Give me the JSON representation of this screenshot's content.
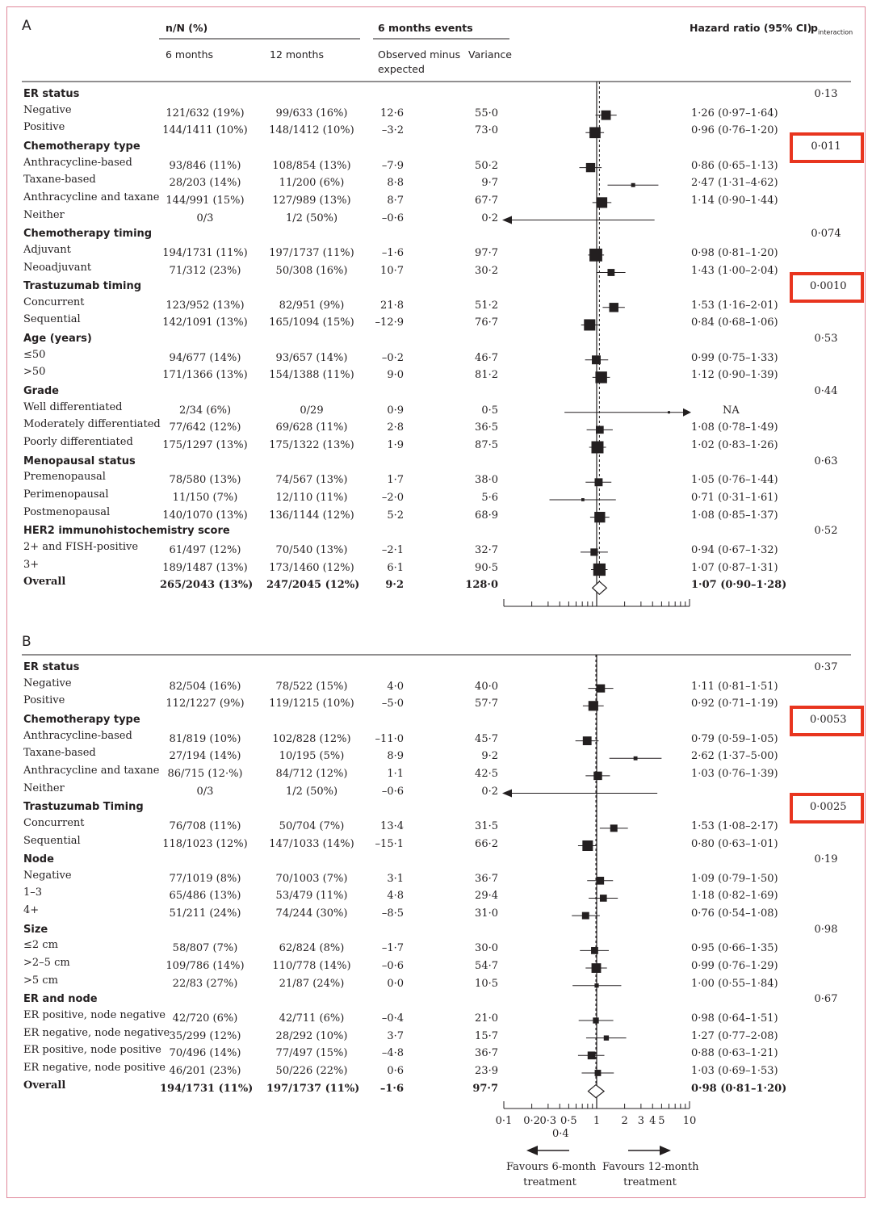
{
  "colors": {
    "highlight": "#e8351f",
    "frame": "#e0879a",
    "ink": "#231f20"
  },
  "headers": {
    "nN": "n/N (%)",
    "m6": "6 months",
    "m12": "12 months",
    "events": "6 months events",
    "ome": "Observed minus",
    "ome2": "expected",
    "variance": "Variance",
    "hr": "Hazard ratio (95% CI)",
    "p_main": "p",
    "p_sub": "interaction"
  },
  "axis": {
    "ticks": [
      "0·1",
      "0·2",
      "0·3",
      "0·5",
      "1",
      "2",
      "3",
      "4",
      "5",
      "10"
    ],
    "tick_04": "0·4",
    "favours_left": [
      "Favours 6-month",
      "treatment"
    ],
    "favours_right": [
      "Favours 12-month",
      "treatment"
    ]
  },
  "chart_data": [
    {
      "type": "forest",
      "panel": "A",
      "rows": [
        {
          "section": "ER status",
          "p": "0·13"
        },
        {
          "label": "Negative",
          "n6": "121/632 (19%)",
          "n12": "99/633 (16%)",
          "ome": "12·6",
          "var": "55·0",
          "hr_text": "1·26 (0·97–1·64)",
          "hr": 1.26,
          "lo": 0.97,
          "hi": 1.64
        },
        {
          "label": "Positive",
          "n6": "144/1411 (10%)",
          "n12": "148/1412 (10%)",
          "ome": "–3·2",
          "var": "73·0",
          "hr_text": "0·96 (0·76–1·20)",
          "hr": 0.96,
          "lo": 0.76,
          "hi": 1.2
        },
        {
          "section": "Chemotherapy type",
          "p": "0·011",
          "highlight": true
        },
        {
          "label": "Anthracycline-based",
          "n6": "93/846 (11%)",
          "n12": "108/854 (13%)",
          "ome": "–7·9",
          "var": "50·2",
          "hr_text": "0·86 (0·65–1·13)",
          "hr": 0.86,
          "lo": 0.65,
          "hi": 1.13
        },
        {
          "label": "Taxane-based",
          "n6": "28/203 (14%)",
          "n12": "11/200 (6%)",
          "ome": "8·8",
          "var": "9·7",
          "hr_text": "2·47 (1·31–4·62)",
          "hr": 2.47,
          "lo": 1.31,
          "hi": 4.62
        },
        {
          "label": "Anthracycline and taxane",
          "n6": "144/991 (15%)",
          "n12": "127/989 (13%)",
          "ome": "8·7",
          "var": "67·7",
          "hr_text": "1·14 (0·90–1·44)",
          "hr": 1.14,
          "lo": 0.9,
          "hi": 1.44
        },
        {
          "label": "Neither",
          "n6": "0/3",
          "n12": "1/2 (50%)",
          "ome": "–0·6",
          "var": "0·2",
          "hr_text": "",
          "hr": null,
          "lo": 0.1,
          "hi": 4.2,
          "arrow_left": true
        },
        {
          "section": "Chemotherapy timing",
          "p": "0·074"
        },
        {
          "label": "Adjuvant",
          "n6": "194/1731 (11%)",
          "n12": "197/1737 (11%)",
          "ome": "–1·6",
          "var": "97·7",
          "hr_text": "0·98 (0·81–1·20)",
          "hr": 0.98,
          "lo": 0.81,
          "hi": 1.2
        },
        {
          "label": "Neoadjuvant",
          "n6": "71/312 (23%)",
          "n12": "50/308 (16%)",
          "ome": "10·7",
          "var": "30·2",
          "hr_text": "1·43 (1·00–2·04)",
          "hr": 1.43,
          "lo": 1.0,
          "hi": 2.04
        },
        {
          "section": "Trastuzumab timing",
          "p": "0·0010",
          "highlight": true
        },
        {
          "label": "Concurrent",
          "n6": "123/952 (13%)",
          "n12": "82/951 (9%)",
          "ome": "21·8",
          "var": "51·2",
          "hr_text": "1·53 (1·16–2·01)",
          "hr": 1.53,
          "lo": 1.16,
          "hi": 2.01
        },
        {
          "label": "Sequential",
          "n6": "142/1091 (13%)",
          "n12": "165/1094 (15%)",
          "ome": "–12·9",
          "var": "76·7",
          "hr_text": "0·84 (0·68–1·06)",
          "hr": 0.84,
          "lo": 0.68,
          "hi": 1.06
        },
        {
          "section": "Age (years)",
          "p": "0·53"
        },
        {
          "label": "≤50",
          "n6": "94/677 (14%)",
          "n12": "93/657 (14%)",
          "ome": "–0·2",
          "var": "46·7",
          "hr_text": "0·99 (0·75–1·33)",
          "hr": 0.99,
          "lo": 0.75,
          "hi": 1.33
        },
        {
          "label": ">50",
          "n6": "171/1366 (13%)",
          "n12": "154/1388 (11%)",
          "ome": "9·0",
          "var": "81·2",
          "hr_text": "1·12 (0·90–1·39)",
          "hr": 1.12,
          "lo": 0.9,
          "hi": 1.39
        },
        {
          "section": "Grade",
          "p": "0·44"
        },
        {
          "label": "Well differentiated",
          "n6": "2/34 (6%)",
          "n12": "0/29",
          "ome": "0·9",
          "var": "0·5",
          "hr_text": "NA",
          "hr": 6.0,
          "lo": 0.45,
          "hi": 10,
          "arrow_right": true
        },
        {
          "label": "Moderately differentiated",
          "n6": "77/642 (12%)",
          "n12": "69/628 (11%)",
          "ome": "2·8",
          "var": "36·5",
          "hr_text": "1·08 (0·78–1·49)",
          "hr": 1.08,
          "lo": 0.78,
          "hi": 1.49
        },
        {
          "label": "Poorly differentiated",
          "n6": "175/1297 (13%)",
          "n12": "175/1322 (13%)",
          "ome": "1·9",
          "var": "87·5",
          "hr_text": "1·02 (0·83–1·26)",
          "hr": 1.02,
          "lo": 0.83,
          "hi": 1.26
        },
        {
          "section": "Menopausal status",
          "p": "0·63"
        },
        {
          "label": "Premenopausal",
          "n6": "78/580 (13%)",
          "n12": "74/567 (13%)",
          "ome": "1·7",
          "var": "38·0",
          "hr_text": "1·05 (0·76–1·44)",
          "hr": 1.05,
          "lo": 0.76,
          "hi": 1.44
        },
        {
          "label": "Perimenopausal",
          "n6": "11/150 (7%)",
          "n12": "12/110 (11%)",
          "ome": "–2·0",
          "var": "5·6",
          "hr_text": "0·71 (0·31–1·61)",
          "hr": 0.71,
          "lo": 0.31,
          "hi": 1.61
        },
        {
          "label": "Postmenopausal",
          "n6": "140/1070 (13%)",
          "n12": "136/1144 (12%)",
          "ome": "5·2",
          "var": "68·9",
          "hr_text": "1·08 (0·85–1·37)",
          "hr": 1.08,
          "lo": 0.85,
          "hi": 1.37
        },
        {
          "section": "HER2 immunohistochemistry score",
          "p": "0·52"
        },
        {
          "label": "2+ and FISH-positive",
          "n6": "61/497 (12%)",
          "n12": "70/540 (13%)",
          "ome": "–2·1",
          "var": "32·7",
          "hr_text": "0·94 (0·67–1·32)",
          "hr": 0.94,
          "lo": 0.67,
          "hi": 1.32
        },
        {
          "label": "3+",
          "n6": "189/1487 (13%)",
          "n12": "173/1460 (12%)",
          "ome": "6·1",
          "var": "90·5",
          "hr_text": "1·07 (0·87–1·31)",
          "hr": 1.07,
          "lo": 0.87,
          "hi": 1.31
        },
        {
          "label": "Overall",
          "overall": true,
          "n6": "265/2043 (13%)",
          "n12": "247/2045 (12%)",
          "ome": "9·2",
          "var": "128·0",
          "hr_text": "1·07 (0·90–1·28)",
          "hr": 1.07,
          "lo": 0.9,
          "hi": 1.28
        }
      ]
    },
    {
      "type": "forest",
      "panel": "B",
      "rows": [
        {
          "section": "ER status",
          "p": "0·37"
        },
        {
          "label": "Negative",
          "n6": "82/504 (16%)",
          "n12": "78/522 (15%)",
          "ome": "4·0",
          "var": "40·0",
          "hr_text": "1·11 (0·81–1·51)",
          "hr": 1.11,
          "lo": 0.81,
          "hi": 1.51
        },
        {
          "label": "Positive",
          "n6": "112/1227 (9%)",
          "n12": "119/1215 (10%)",
          "ome": "–5·0",
          "var": "57·7",
          "hr_text": "0·92 (0·71–1·19)",
          "hr": 0.92,
          "lo": 0.71,
          "hi": 1.19
        },
        {
          "section": "Chemotherapy type",
          "p": "0·0053",
          "highlight": true
        },
        {
          "label": "Anthracycline-based",
          "n6": "81/819 (10%)",
          "n12": "102/828 (12%)",
          "ome": "–11·0",
          "var": "45·7",
          "hr_text": "0·79 (0·59–1·05)",
          "hr": 0.79,
          "lo": 0.59,
          "hi": 1.05
        },
        {
          "label": "Taxane-based",
          "n6": "27/194 (14%)",
          "n12": "10/195 (5%)",
          "ome": "8·9",
          "var": "9·2",
          "hr_text": "2·62 (1·37–5·00)",
          "hr": 2.62,
          "lo": 1.37,
          "hi": 5.0
        },
        {
          "label": "Anthracycline and taxane",
          "n6": "86/715 (12·%)",
          "n12": "84/712 (12%)",
          "ome": "1·1",
          "var": "42·5",
          "hr_text": "1·03 (0·76–1·39)",
          "hr": 1.03,
          "lo": 0.76,
          "hi": 1.39
        },
        {
          "label": "Neither",
          "n6": "0/3",
          "n12": "1/2 (50%)",
          "ome": "–0·6",
          "var": "0·2",
          "hr_text": "",
          "hr": null,
          "lo": 0.1,
          "hi": 4.5,
          "arrow_left": true
        },
        {
          "section": "Trastuzumab Timing",
          "p": "0·0025",
          "highlight": true
        },
        {
          "label": "Concurrent",
          "n6": "76/708 (11%)",
          "n12": "50/704 (7%)",
          "ome": "13·4",
          "var": "31·5",
          "hr_text": "1·53 (1·08–2·17)",
          "hr": 1.53,
          "lo": 1.08,
          "hi": 2.17
        },
        {
          "label": "Sequential",
          "n6": "118/1023 (12%)",
          "n12": "147/1033 (14%)",
          "ome": "–15·1",
          "var": "66·2",
          "hr_text": "0·80 (0·63–1·01)",
          "hr": 0.8,
          "lo": 0.63,
          "hi": 1.01
        },
        {
          "section": "Node",
          "p": "0·19"
        },
        {
          "label": "Negative",
          "n6": "77/1019 (8%)",
          "n12": "70/1003 (7%)",
          "ome": "3·1",
          "var": "36·7",
          "hr_text": "1·09 (0·79–1·50)",
          "hr": 1.09,
          "lo": 0.79,
          "hi": 1.5
        },
        {
          "label": "1–3",
          "n6": "65/486 (13%)",
          "n12": "53/479 (11%)",
          "ome": "4·8",
          "var": "29·4",
          "hr_text": "1·18 (0·82–1·69)",
          "hr": 1.18,
          "lo": 0.82,
          "hi": 1.69
        },
        {
          "label": "4+",
          "n6": "51/211 (24%)",
          "n12": "74/244 (30%)",
          "ome": "–8·5",
          "var": "31·0",
          "hr_text": "0·76 (0·54–1·08)",
          "hr": 0.76,
          "lo": 0.54,
          "hi": 1.08
        },
        {
          "section": "Size",
          "p": "0·98"
        },
        {
          "label": "≤2 cm",
          "n6": "58/807 (7%)",
          "n12": "62/824 (8%)",
          "ome": "–1·7",
          "var": "30·0",
          "hr_text": "0·95 (0·66–1·35)",
          "hr": 0.95,
          "lo": 0.66,
          "hi": 1.35
        },
        {
          "label": ">2–5 cm",
          "n6": "109/786 (14%)",
          "n12": "110/778 (14%)",
          "ome": "–0·6",
          "var": "54·7",
          "hr_text": "0·99 (0·76–1·29)",
          "hr": 0.99,
          "lo": 0.76,
          "hi": 1.29
        },
        {
          "label": ">5 cm",
          "n6": "22/83 (27%)",
          "n12": "21/87 (24%)",
          "ome": "0·0",
          "var": "10·5",
          "hr_text": "1·00 (0·55–1·84)",
          "hr": 1.0,
          "lo": 0.55,
          "hi": 1.84
        },
        {
          "section": "ER and node",
          "p": "0·67"
        },
        {
          "label": "ER positive, node negative",
          "n6": "42/720 (6%)",
          "n12": "42/711 (6%)",
          "ome": "–0·4",
          "var": "21·0",
          "hr_text": "0·98 (0·64–1·51)",
          "hr": 0.98,
          "lo": 0.64,
          "hi": 1.51
        },
        {
          "label": "ER negative, node negative",
          "n6": "35/299 (12%)",
          "n12": "28/292 (10%)",
          "ome": "3·7",
          "var": "15·7",
          "hr_text": "1·27 (0·77–2·08)",
          "hr": 1.27,
          "lo": 0.77,
          "hi": 2.08
        },
        {
          "label": "ER positive, node positive",
          "n6": "70/496 (14%)",
          "n12": "77/497 (15%)",
          "ome": "–4·8",
          "var": "36·7",
          "hr_text": "0·88 (0·63–1·21)",
          "hr": 0.88,
          "lo": 0.63,
          "hi": 1.21
        },
        {
          "label": "ER negative, node positive",
          "n6": "46/201 (23%)",
          "n12": "50/226 (22%)",
          "ome": "0·6",
          "var": "23·9",
          "hr_text": "1·03 (0·69–1·53)",
          "hr": 1.03,
          "lo": 0.69,
          "hi": 1.53
        },
        {
          "label": "Overall",
          "overall": true,
          "n6": "194/1731 (11%)",
          "n12": "197/1737 (11%)",
          "ome": "–1·6",
          "var": "97·7",
          "hr_text": "0·98 (0·81–1·20)",
          "hr": 0.98,
          "lo": 0.81,
          "hi": 1.2
        }
      ]
    }
  ]
}
